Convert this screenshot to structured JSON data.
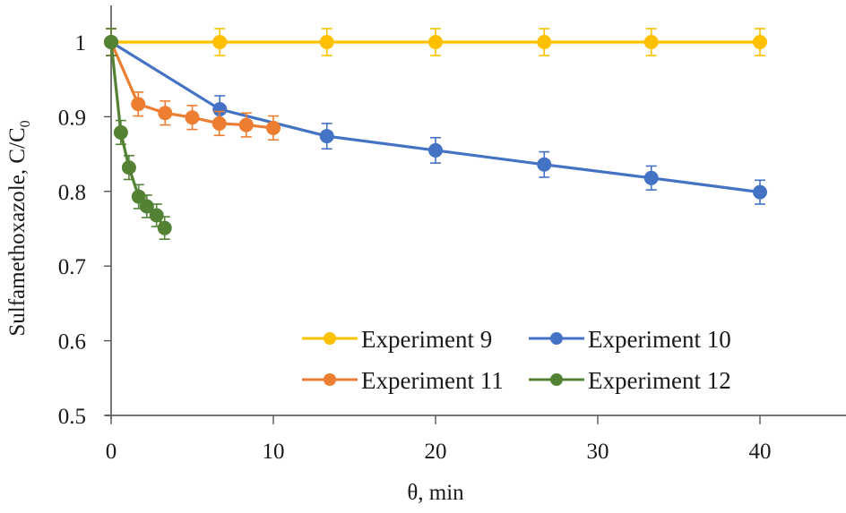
{
  "chart_data": {
    "type": "line",
    "title": "",
    "xlabel": "θ, min",
    "ylabel": "Sulfamethoxazole, C/C",
    "ylabel_subscript": "0",
    "xlim": [
      0,
      45
    ],
    "ylim": [
      0.5,
      1.05
    ],
    "xticks": [
      0,
      10,
      20,
      30,
      40
    ],
    "xtick_labels": [
      "0",
      "10",
      "20",
      "30",
      "40"
    ],
    "yticks": [
      0.5,
      0.6,
      0.7,
      0.8,
      0.9,
      1.0
    ],
    "ytick_labels": [
      "0.5",
      "0.6",
      "0.7",
      "0.8",
      "0.9",
      "1"
    ],
    "grid": false,
    "legend_position": "lower-right",
    "series": [
      {
        "name": "Experiment 9",
        "color": "#FFC000",
        "x": [
          0,
          6.7,
          13.3,
          20,
          26.7,
          33.3,
          40
        ],
        "y": [
          1.0,
          1.0,
          1.0,
          1.0,
          1.0,
          1.0,
          1.0
        ],
        "err": [
          0.018,
          0.018,
          0.018,
          0.018,
          0.018,
          0.018,
          0.018
        ]
      },
      {
        "name": "Experiment 10",
        "color": "#4472C4",
        "x": [
          0,
          6.7,
          13.3,
          20,
          26.7,
          33.3,
          40
        ],
        "y": [
          1.0,
          0.91,
          0.874,
          0.855,
          0.836,
          0.818,
          0.799
        ],
        "err": [
          0.018,
          0.018,
          0.017,
          0.017,
          0.017,
          0.016,
          0.016
        ]
      },
      {
        "name": "Experiment 11",
        "color": "#ED7D31",
        "x": [
          0,
          1.67,
          3.33,
          5.0,
          6.67,
          8.33,
          10.0
        ],
        "y": [
          1.0,
          0.917,
          0.905,
          0.899,
          0.891,
          0.889,
          0.885
        ],
        "err": [
          0.018,
          0.016,
          0.016,
          0.016,
          0.016,
          0.016,
          0.016
        ]
      },
      {
        "name": "Experiment 12",
        "color": "#548235",
        "x": [
          0,
          0.6,
          1.1,
          1.7,
          2.2,
          2.8,
          3.3
        ],
        "y": [
          1.0,
          0.879,
          0.832,
          0.793,
          0.78,
          0.768,
          0.751
        ],
        "err": [
          0.018,
          0.016,
          0.016,
          0.016,
          0.015,
          0.015,
          0.015
        ]
      }
    ]
  }
}
